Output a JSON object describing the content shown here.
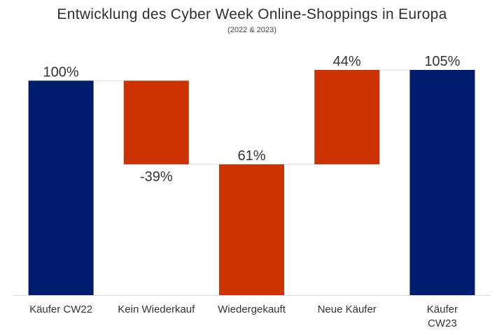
{
  "chart_data": {
    "type": "waterfall",
    "title": "Entwicklung des Cyber Week Online-Shoppings in Europa",
    "subtitle": "(2022 & 2023)",
    "xlabel": "",
    "ylabel": "",
    "ylim": [
      0,
      105
    ],
    "grid": false,
    "legend": "none",
    "bars": [
      {
        "category": [
          "Käufer CW22"
        ],
        "base": 0,
        "value": 100,
        "label": "100%",
        "label_pos": "above",
        "kind": "total"
      },
      {
        "category": [
          "Kein Wiederkauf"
        ],
        "base": 61,
        "value": 39,
        "label": "-39%",
        "label_pos": "below",
        "kind": "change"
      },
      {
        "category": [
          "Wiedergekauft"
        ],
        "base": 0,
        "value": 61,
        "label": "61%",
        "label_pos": "above",
        "kind": "change"
      },
      {
        "category": [
          "Neue Käufer"
        ],
        "base": 61,
        "value": 44,
        "label": "44%",
        "label_pos": "above",
        "kind": "change"
      },
      {
        "category": [
          "Käufer",
          "CW23"
        ],
        "base": 0,
        "value": 105,
        "label": "105%",
        "label_pos": "above",
        "kind": "total"
      }
    ],
    "colors": {
      "total": "#001c6e",
      "change": "#cc3300",
      "connector": "#e6e6e6",
      "axis": "#d9d9d9"
    }
  }
}
